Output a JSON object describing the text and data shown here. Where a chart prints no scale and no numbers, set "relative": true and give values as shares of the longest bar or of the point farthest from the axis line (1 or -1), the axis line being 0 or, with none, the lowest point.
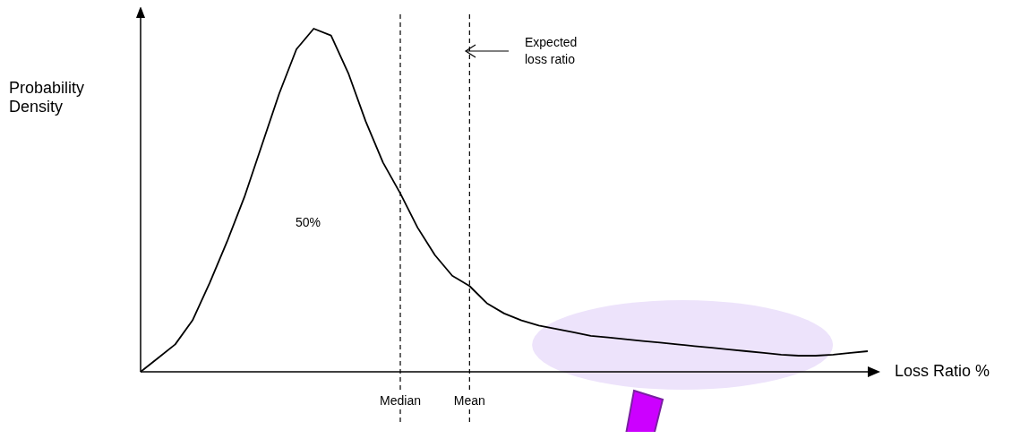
{
  "chart_data": {
    "type": "line",
    "relative": true,
    "xlabel": "Loss Ratio %",
    "ylabel": "Probability Density",
    "categories": [
      null,
      null,
      null,
      null,
      null,
      null,
      null,
      null,
      null,
      null,
      null,
      null,
      null,
      null,
      null,
      "Median",
      null,
      null,
      null,
      "Mean",
      null,
      null,
      null,
      null,
      null,
      null,
      null,
      null,
      null,
      null,
      null,
      null,
      null,
      null,
      null,
      null,
      null,
      null,
      null,
      null,
      null,
      null,
      null
    ],
    "series": [
      {
        "color": "#000000",
        "values": [
          0,
          0.04,
          0.08,
          0.15,
          0.26,
          0.38,
          0.51,
          0.66,
          0.81,
          0.94,
          1,
          0.98,
          0.87,
          0.73,
          0.61,
          0.52,
          0.42,
          0.34,
          0.28,
          0.25,
          0.2,
          0.17,
          0.15,
          0.135,
          0.125,
          0.115,
          0.105,
          0.1,
          0.095,
          0.09,
          0.085,
          0.08,
          0.075,
          0.07,
          0.065,
          0.06,
          0.055,
          0.05,
          0.047,
          0.047,
          0.05,
          0.055,
          0.06
        ]
      }
    ],
    "ref_lines": [
      {
        "axis": "x",
        "value": "Median",
        "color": "#000000",
        "line_style": "dashed"
      },
      {
        "axis": "x",
        "value": "Mean",
        "color": "#000000",
        "line_style": "dashed"
      }
    ],
    "annotations": [
      "50%",
      "Expected loss ratio"
    ]
  }
}
